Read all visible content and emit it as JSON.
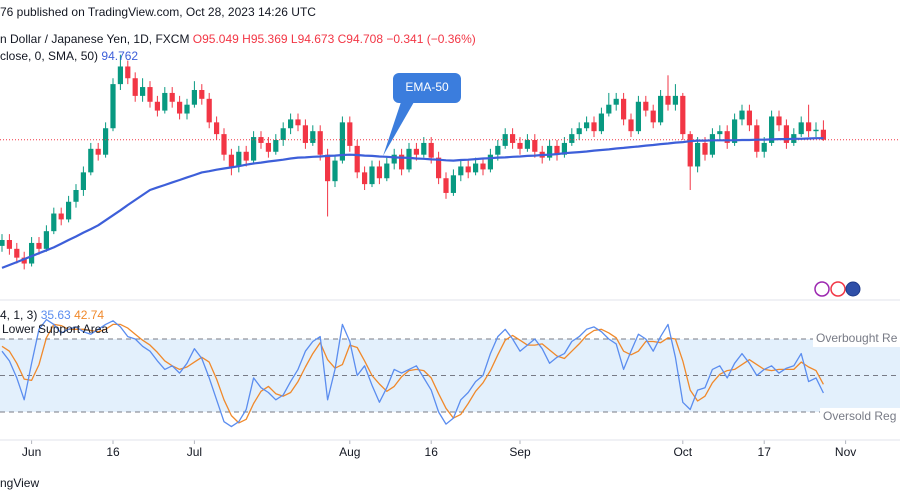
{
  "chart_data": {
    "type": "candlestick",
    "published": "76 published on TradingView.com, Oct 28, 2023 14:26 UTC",
    "symbol": "n Dollar / Japanese Yen, 1D, FXCM",
    "ohlc_labels": [
      "O95.049",
      "H95.369",
      "L94.673",
      "C94.708"
    ],
    "change_label": "−0.341 (−0.36%)",
    "sma_label": "close, 0, SMA, 50)",
    "annotation": "EMA-50",
    "footer": "ngView",
    "up_color": "#089981",
    "down_color": "#f23645",
    "sma_color": "#3d5fd9",
    "ylim": [
      89.26,
      99.46
    ],
    "xlim": [
      -0.27,
      121.35
    ],
    "xticks": [
      {
        "value": 4,
        "label": "Jun"
      },
      {
        "value": 15,
        "label": "16"
      },
      {
        "value": 26,
        "label": "Jul"
      },
      {
        "value": 47,
        "label": "Aug"
      },
      {
        "value": 58,
        "label": "16"
      },
      {
        "value": 70,
        "label": "Sep"
      },
      {
        "value": 92,
        "label": "Oct"
      },
      {
        "value": 103,
        "label": "17"
      },
      {
        "value": 114,
        "label": "Nov"
      }
    ],
    "ohlc": [
      [
        91.1,
        91.5,
        90.9,
        91.3
      ],
      [
        91.3,
        91.5,
        90.8,
        91.0
      ],
      [
        91.0,
        91.2,
        90.5,
        90.7
      ],
      [
        90.7,
        90.9,
        90.3,
        90.5
      ],
      [
        90.5,
        91.4,
        90.4,
        91.2
      ],
      [
        91.2,
        91.4,
        90.8,
        91.0
      ],
      [
        91.0,
        91.8,
        90.9,
        91.6
      ],
      [
        91.6,
        92.4,
        91.5,
        92.2
      ],
      [
        92.2,
        92.4,
        91.8,
        92.0
      ],
      [
        92.0,
        92.8,
        91.9,
        92.6
      ],
      [
        92.6,
        93.2,
        92.4,
        93.0
      ],
      [
        93.0,
        93.8,
        92.8,
        93.6
      ],
      [
        93.6,
        94.6,
        93.5,
        94.4
      ],
      [
        94.4,
        94.6,
        94.0,
        94.2
      ],
      [
        94.2,
        95.3,
        94.1,
        95.1
      ],
      [
        95.1,
        96.8,
        95.0,
        96.6
      ],
      [
        96.6,
        97.6,
        96.4,
        97.2
      ],
      [
        97.2,
        97.4,
        96.6,
        96.8
      ],
      [
        96.8,
        97.0,
        96.0,
        96.2
      ],
      [
        96.2,
        96.8,
        96.0,
        96.5
      ],
      [
        96.5,
        96.7,
        95.8,
        96.0
      ],
      [
        96.0,
        96.2,
        95.5,
        95.7
      ],
      [
        95.7,
        96.5,
        95.6,
        96.3
      ],
      [
        96.3,
        96.5,
        95.8,
        96.0
      ],
      [
        96.0,
        96.2,
        95.4,
        95.6
      ],
      [
        95.6,
        96.1,
        95.4,
        95.9
      ],
      [
        95.9,
        96.7,
        95.8,
        96.4
      ],
      [
        96.4,
        96.6,
        95.9,
        96.1
      ],
      [
        96.1,
        96.3,
        95.1,
        95.3
      ],
      [
        95.3,
        95.5,
        94.7,
        94.9
      ],
      [
        94.9,
        95.1,
        94.0,
        94.2
      ],
      [
        94.2,
        94.4,
        93.5,
        93.8
      ],
      [
        93.8,
        94.5,
        93.6,
        94.3
      ],
      [
        94.3,
        94.5,
        93.8,
        94.0
      ],
      [
        94.0,
        95.0,
        93.9,
        94.8
      ],
      [
        94.8,
        95.0,
        94.4,
        94.6
      ],
      [
        94.6,
        94.8,
        94.1,
        94.3
      ],
      [
        94.3,
        94.9,
        94.2,
        94.7
      ],
      [
        94.7,
        95.3,
        94.5,
        95.1
      ],
      [
        95.1,
        95.6,
        94.9,
        95.4
      ],
      [
        95.4,
        95.6,
        95.0,
        95.2
      ],
      [
        95.2,
        95.4,
        94.4,
        94.6
      ],
      [
        94.6,
        95.2,
        94.5,
        95.0
      ],
      [
        95.0,
        95.2,
        94.0,
        94.2
      ],
      [
        94.2,
        94.4,
        92.1,
        93.3
      ],
      [
        93.3,
        94.2,
        93.1,
        94.0
      ],
      [
        94.0,
        95.5,
        93.9,
        95.3
      ],
      [
        95.3,
        95.5,
        94.3,
        94.5
      ],
      [
        94.5,
        94.7,
        93.4,
        93.6
      ],
      [
        93.6,
        93.8,
        93.0,
        93.2
      ],
      [
        93.2,
        94.0,
        93.1,
        93.8
      ],
      [
        93.8,
        94.0,
        93.2,
        93.4
      ],
      [
        93.4,
        94.1,
        93.3,
        93.9
      ],
      [
        93.9,
        94.4,
        93.7,
        94.2
      ],
      [
        94.2,
        94.4,
        93.5,
        93.7
      ],
      [
        93.7,
        94.6,
        93.6,
        94.4
      ],
      [
        94.4,
        94.6,
        94.0,
        94.2
      ],
      [
        94.2,
        94.8,
        94.1,
        94.6
      ],
      [
        94.6,
        94.8,
        93.9,
        94.1
      ],
      [
        94.1,
        94.3,
        93.2,
        93.4
      ],
      [
        93.4,
        93.6,
        92.7,
        92.9
      ],
      [
        92.9,
        93.7,
        92.8,
        93.5
      ],
      [
        93.5,
        94.0,
        93.3,
        93.8
      ],
      [
        93.8,
        94.0,
        93.4,
        93.6
      ],
      [
        93.6,
        94.1,
        93.5,
        93.9
      ],
      [
        93.9,
        94.1,
        93.5,
        93.7
      ],
      [
        93.7,
        94.4,
        93.6,
        94.2
      ],
      [
        94.2,
        94.7,
        94.0,
        94.5
      ],
      [
        94.5,
        95.1,
        94.4,
        94.9
      ],
      [
        94.9,
        95.1,
        94.4,
        94.6
      ],
      [
        94.6,
        94.8,
        94.2,
        94.4
      ],
      [
        94.4,
        94.9,
        94.3,
        94.7
      ],
      [
        94.7,
        94.9,
        94.1,
        94.3
      ],
      [
        94.3,
        94.5,
        93.9,
        94.1
      ],
      [
        94.1,
        94.7,
        94.0,
        94.5
      ],
      [
        94.5,
        94.7,
        94.0,
        94.2
      ],
      [
        94.2,
        94.8,
        94.1,
        94.6
      ],
      [
        94.6,
        95.1,
        94.5,
        94.9
      ],
      [
        94.9,
        95.3,
        94.7,
        95.1
      ],
      [
        95.1,
        95.5,
        95.0,
        95.3
      ],
      [
        95.3,
        95.5,
        94.8,
        95.0
      ],
      [
        95.0,
        95.8,
        94.9,
        95.6
      ],
      [
        95.6,
        96.3,
        95.5,
        95.9
      ],
      [
        95.9,
        96.3,
        95.7,
        96.1
      ],
      [
        96.1,
        96.3,
        95.2,
        95.4
      ],
      [
        95.4,
        95.6,
        94.8,
        95.0
      ],
      [
        95.0,
        96.2,
        94.9,
        96.0
      ],
      [
        96.0,
        96.2,
        95.5,
        95.7
      ],
      [
        95.7,
        95.9,
        95.1,
        95.3
      ],
      [
        95.3,
        96.4,
        95.2,
        96.2
      ],
      [
        96.2,
        96.9,
        95.7,
        95.9
      ],
      [
        95.9,
        96.6,
        95.7,
        96.2
      ],
      [
        96.2,
        96.3,
        94.7,
        94.9
      ],
      [
        94.9,
        95.0,
        93.0,
        93.8
      ],
      [
        93.8,
        94.8,
        93.6,
        94.6
      ],
      [
        94.6,
        94.8,
        94.0,
        94.2
      ],
      [
        94.2,
        95.1,
        94.1,
        94.9
      ],
      [
        94.9,
        95.2,
        94.7,
        95.0
      ],
      [
        95.0,
        95.2,
        94.4,
        94.6
      ],
      [
        94.6,
        95.6,
        94.5,
        95.4
      ],
      [
        95.4,
        95.9,
        95.2,
        95.7
      ],
      [
        95.7,
        95.9,
        95.0,
        95.2
      ],
      [
        95.2,
        95.4,
        94.1,
        94.3
      ],
      [
        94.3,
        94.8,
        94.1,
        94.6
      ],
      [
        94.6,
        95.7,
        94.5,
        95.5
      ],
      [
        95.5,
        95.7,
        95.0,
        95.2
      ],
      [
        95.2,
        95.4,
        94.4,
        94.6
      ],
      [
        94.6,
        95.1,
        94.5,
        94.9
      ],
      [
        94.9,
        95.5,
        94.8,
        95.3
      ],
      [
        95.3,
        95.9,
        94.8,
        95.0
      ],
      [
        95.0,
        95.3,
        94.8,
        95.049
      ],
      [
        95.049,
        95.369,
        94.673,
        94.708
      ]
    ],
    "sma": [
      90.35,
      90.45,
      90.55,
      90.65,
      90.75,
      90.85,
      90.95,
      91.05,
      91.17,
      91.3,
      91.42,
      91.55,
      91.67,
      91.8,
      91.97,
      92.14,
      92.31,
      92.49,
      92.66,
      92.83,
      93.0,
      93.09,
      93.17,
      93.26,
      93.34,
      93.43,
      93.51,
      93.6,
      93.64,
      93.69,
      93.73,
      93.77,
      93.81,
      93.86,
      93.9,
      93.93,
      93.97,
      94.0,
      94.03,
      94.07,
      94.1,
      94.11,
      94.13,
      94.14,
      94.16,
      94.17,
      94.19,
      94.2,
      94.19,
      94.17,
      94.16,
      94.14,
      94.13,
      94.11,
      94.1,
      94.09,
      94.07,
      94.06,
      94.04,
      94.03,
      94.01,
      94.0,
      94.02,
      94.03,
      94.05,
      94.07,
      94.08,
      94.1,
      94.11,
      94.13,
      94.14,
      94.16,
      94.17,
      94.19,
      94.2,
      94.22,
      94.25,
      94.27,
      94.29,
      94.31,
      94.34,
      94.36,
      94.38,
      94.41,
      94.43,
      94.46,
      94.48,
      94.51,
      94.53,
      94.56,
      94.58,
      94.61,
      94.63,
      94.66,
      94.68,
      94.68,
      94.69,
      94.69,
      94.69,
      94.69,
      94.7,
      94.7,
      94.71,
      94.71,
      94.72,
      94.73,
      94.73,
      94.74,
      94.74,
      94.75,
      94.76,
      94.762
    ],
    "stoch": {
      "label": "4, 1, 3)",
      "note": "Lower Support Area",
      "ylim": [
        0,
        100
      ],
      "band": [
        20,
        80
      ],
      "levels": [
        80,
        50,
        20
      ],
      "overbought": "Overbought Re",
      "oversold": "Oversold Reg",
      "k_color": "#5b8def",
      "d_color": "#f0892b",
      "band_color": "#e3f0fc",
      "k": [
        70,
        62,
        48,
        30,
        60,
        88,
        96,
        92,
        85,
        88,
        90,
        86,
        84,
        88,
        92,
        95,
        90,
        82,
        80,
        74,
        70,
        62,
        55,
        58,
        52,
        60,
        72,
        64,
        48,
        30,
        12,
        8,
        12,
        22,
        48,
        40,
        36,
        30,
        34,
        45,
        55,
        70,
        78,
        82,
        30,
        55,
        92,
        78,
        50,
        58,
        42,
        28,
        40,
        55,
        52,
        55,
        58,
        48,
        38,
        20,
        10,
        15,
        30,
        36,
        45,
        50,
        68,
        82,
        88,
        80,
        70,
        75,
        80,
        72,
        60,
        65,
        68,
        78,
        82,
        88,
        90,
        86,
        80,
        76,
        55,
        70,
        84,
        80,
        70,
        82,
        92,
        65,
        28,
        22,
        38,
        40,
        55,
        58,
        48,
        60,
        68,
        60,
        50,
        55,
        58,
        52,
        56,
        58,
        68,
        45,
        48,
        35.63
      ],
      "d": [
        74,
        70,
        60,
        47,
        46,
        59,
        81,
        92,
        91,
        88,
        88,
        88,
        87,
        86,
        88,
        92,
        92,
        89,
        84,
        79,
        75,
        69,
        62,
        58,
        55,
        57,
        61,
        65,
        61,
        47,
        30,
        17,
        11,
        14,
        27,
        37,
        41,
        35,
        33,
        36,
        45,
        57,
        68,
        77,
        63,
        56,
        59,
        75,
        73,
        62,
        50,
        43,
        37,
        41,
        49,
        54,
        55,
        54,
        48,
        35,
        23,
        15,
        18,
        27,
        37,
        44,
        54,
        67,
        79,
        83,
        79,
        75,
        75,
        76,
        71,
        66,
        64,
        70,
        76,
        83,
        87,
        88,
        85,
        81,
        70,
        67,
        70,
        78,
        78,
        77,
        81,
        80,
        62,
        38,
        29,
        33,
        44,
        51,
        54,
        55,
        59,
        63,
        59,
        55,
        54,
        55,
        55,
        55,
        61,
        57,
        54,
        42.74
      ]
    }
  }
}
